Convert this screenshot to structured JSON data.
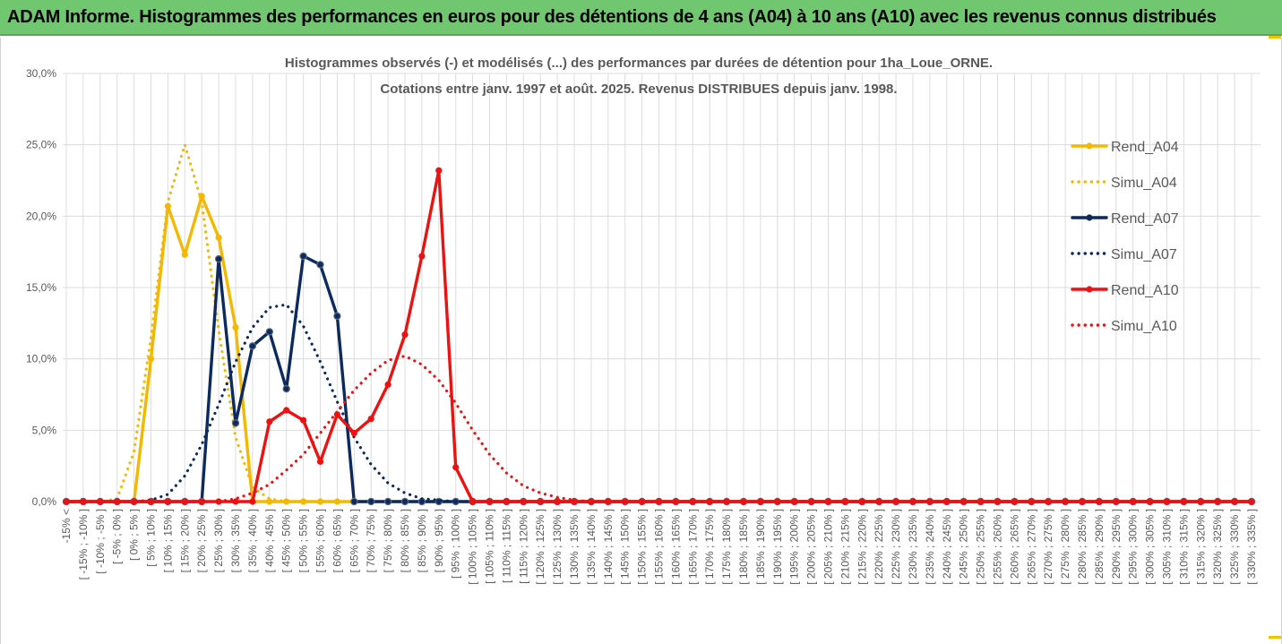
{
  "banner": {
    "title": "ADAM Informe. Histogrammes des performances en euros pour des détentions de 4 ans (A04) à 10 ans (A10) avec les revenus connus distribués"
  },
  "colors": {
    "banner_bg": "#70c770",
    "A04": "#f5b800",
    "A07": "#0d2a5e",
    "A10": "#ee1111",
    "grid": "#dcdcdc",
    "text": "#595959"
  },
  "chart_data": {
    "type": "line",
    "title_lines": [
      "Histogrammes observés (-) et modélisés (...) des performances par durées de détention pour 1ha_Loue_ORNE.",
      "Cotations entre janv. 1997 et août. 2025. Revenus DISTRIBUES depuis janv. 1998."
    ],
    "xlabel": "",
    "ylabel": "",
    "ylim": [
      0,
      30
    ],
    "y_ticks": [
      "0,0%",
      "5,0%",
      "10,0%",
      "15,0%",
      "20,0%",
      "25,0%",
      "30,0%"
    ],
    "grid": true,
    "legend_position": "right",
    "categories": [
      "-15% <",
      "[ -15% ; -10% ]",
      "[ -10% ; -5% ]",
      "[ -5% ; 0% ]",
      "[ 0% ; 5% ]",
      "[ 5% ; 10% ]",
      "[ 10% ; 15% ]",
      "[ 15% ; 20% ]",
      "[ 20% ; 25% ]",
      "[ 25% ; 30% ]",
      "[ 30% ; 35% ]",
      "[ 35% ; 40% ]",
      "[ 40% ; 45% ]",
      "[ 45% ; 50% ]",
      "[ 50% ; 55% ]",
      "[ 55% ; 60% ]",
      "[ 60% ; 65% ]",
      "[ 65% ; 70% ]",
      "[ 70% ; 75% ]",
      "[ 75% ; 80% ]",
      "[ 80% ; 85% ]",
      "[ 85% ; 90% ]",
      "[ 90% ; 95% ]",
      "[ 95% ; 100% ]",
      "[ 100% ; 105% ]",
      "[ 105% ; 110% ]",
      "[ 110% ; 115% ]",
      "[ 115% ; 120% ]",
      "[ 120% ; 125% ]",
      "[ 125% ; 130% ]",
      "[ 130% ; 135% ]",
      "[ 135% ; 140% ]",
      "[ 140% ; 145% ]",
      "[ 145% ; 150% ]",
      "[ 150% ; 155% ]",
      "[ 155% ; 160% ]",
      "[ 160% ; 165% ]",
      "[ 165% ; 170% ]",
      "[ 170% ; 175% ]",
      "[ 175% ; 180% ]",
      "[ 180% ; 185% ]",
      "[ 185% ; 190% ]",
      "[ 190% ; 195% ]",
      "[ 195% ; 200% ]",
      "[ 200% ; 205% ]",
      "[ 205% ; 210% ]",
      "[ 210% ; 215% ]",
      "[ 215% ; 220% ]",
      "[ 220% ; 225% ]",
      "[ 225% ; 230% ]",
      "[ 230% ; 235% ]",
      "[ 235% ; 240% ]",
      "[ 240% ; 245% ]",
      "[ 245% ; 250% ]",
      "[ 250% ; 255% ]",
      "[ 255% ; 260% ]",
      "[ 260% ; 265% ]",
      "[ 265% ; 270% ]",
      "[ 270% ; 275% ]",
      "[ 275% ; 280% ]",
      "[ 280% ; 285% ]",
      "[ 285% ; 290% ]",
      "[ 290% ; 295% ]",
      "[ 295% ; 300% ]",
      "[ 300% ; 305% ]",
      "[ 305% ; 310% ]",
      "[ 310% ; 315% ]",
      "[ 315% ; 320% ]",
      "[ 320% ; 325% ]",
      "[ 325% ; 330% ]",
      "[ 330% ; 335% ]"
    ],
    "series": [
      {
        "name": "Rend_A04",
        "style": "solid",
        "color": "#f5b800",
        "values": [
          0,
          0,
          0,
          0,
          0,
          10.0,
          20.7,
          17.3,
          21.4,
          18.5,
          12.2,
          0,
          0,
          0,
          0,
          0,
          0,
          0,
          0,
          0,
          0,
          0,
          0,
          0,
          0,
          0,
          0,
          0,
          0,
          0,
          0,
          0,
          0,
          0,
          0,
          0,
          0,
          0,
          0,
          0,
          0,
          0,
          0,
          0,
          0,
          0,
          0,
          0,
          0,
          0,
          0,
          0,
          0,
          0,
          0,
          0,
          0,
          0,
          0,
          0,
          0,
          0,
          0,
          0,
          0,
          0,
          0,
          0,
          0,
          0,
          0
        ]
      },
      {
        "name": "Simu_A04",
        "style": "dotted",
        "color": "#f5b800",
        "values": [
          0,
          0,
          0,
          0.2,
          3.5,
          11.5,
          21.0,
          25.0,
          21.0,
          12.0,
          4.5,
          1.0,
          0.2,
          0,
          0,
          0,
          0,
          0,
          0,
          0,
          0,
          0,
          0,
          0,
          0,
          0,
          0,
          0,
          0,
          0,
          0,
          0,
          0,
          0,
          0,
          0,
          0,
          0,
          0,
          0,
          0,
          0,
          0,
          0,
          0,
          0,
          0,
          0,
          0,
          0,
          0,
          0,
          0,
          0,
          0,
          0,
          0,
          0,
          0,
          0,
          0,
          0,
          0,
          0,
          0,
          0,
          0,
          0,
          0,
          0,
          0
        ]
      },
      {
        "name": "Rend_A07",
        "style": "solid",
        "color": "#0d2a5e",
        "values": [
          0,
          0,
          0,
          0,
          0,
          0,
          0,
          0,
          0,
          17.0,
          5.5,
          10.9,
          11.9,
          7.9,
          17.2,
          16.6,
          13.0,
          0,
          0,
          0,
          0,
          0,
          0,
          0,
          0,
          0,
          0,
          0,
          0,
          0,
          0,
          0,
          0,
          0,
          0,
          0,
          0,
          0,
          0,
          0,
          0,
          0,
          0,
          0,
          0,
          0,
          0,
          0,
          0,
          0,
          0,
          0,
          0,
          0,
          0,
          0,
          0,
          0,
          0,
          0,
          0,
          0,
          0,
          0,
          0,
          0,
          0,
          0,
          0,
          0,
          0
        ]
      },
      {
        "name": "Simu_A07",
        "style": "dotted",
        "color": "#0d2a5e",
        "values": [
          0,
          0,
          0,
          0,
          0,
          0.1,
          0.5,
          1.8,
          4.0,
          6.8,
          9.8,
          12.2,
          13.6,
          13.8,
          12.3,
          9.8,
          7.0,
          4.5,
          2.6,
          1.3,
          0.6,
          0.2,
          0.1,
          0,
          0,
          0,
          0,
          0,
          0,
          0,
          0,
          0,
          0,
          0,
          0,
          0,
          0,
          0,
          0,
          0,
          0,
          0,
          0,
          0,
          0,
          0,
          0,
          0,
          0,
          0,
          0,
          0,
          0,
          0,
          0,
          0,
          0,
          0,
          0,
          0,
          0,
          0,
          0,
          0,
          0,
          0,
          0,
          0,
          0,
          0,
          0
        ]
      },
      {
        "name": "Rend_A10",
        "style": "solid",
        "color": "#ee1111",
        "values": [
          0,
          0,
          0,
          0,
          0,
          0,
          0,
          0,
          0,
          0,
          0,
          0,
          5.6,
          6.4,
          5.7,
          2.8,
          6.1,
          4.8,
          5.8,
          8.2,
          11.7,
          17.2,
          23.2,
          2.4,
          0,
          0,
          0,
          0,
          0,
          0,
          0,
          0,
          0,
          0,
          0,
          0,
          0,
          0,
          0,
          0,
          0,
          0,
          0,
          0,
          0,
          0,
          0,
          0,
          0,
          0,
          0,
          0,
          0,
          0,
          0,
          0,
          0,
          0,
          0,
          0,
          0,
          0,
          0,
          0,
          0,
          0,
          0,
          0,
          0,
          0,
          0
        ]
      },
      {
        "name": "Simu_A10",
        "style": "dotted",
        "color": "#ee1111",
        "values": [
          0,
          0,
          0,
          0,
          0,
          0,
          0,
          0,
          0,
          0,
          0.2,
          0.6,
          1.2,
          2.2,
          3.3,
          4.8,
          6.3,
          7.8,
          9.0,
          9.9,
          10.2,
          9.6,
          8.5,
          6.9,
          5.0,
          3.3,
          2.0,
          1.1,
          0.6,
          0.3,
          0.1,
          0,
          0,
          0,
          0,
          0,
          0,
          0,
          0,
          0,
          0,
          0,
          0,
          0,
          0,
          0,
          0,
          0,
          0,
          0,
          0,
          0,
          0,
          0,
          0,
          0,
          0,
          0,
          0,
          0,
          0,
          0,
          0,
          0,
          0,
          0,
          0,
          0,
          0,
          0,
          0
        ]
      }
    ]
  }
}
